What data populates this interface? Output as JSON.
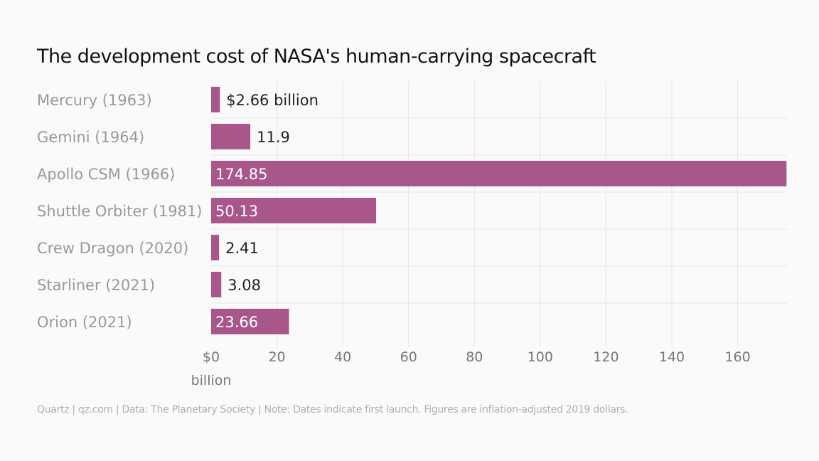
{
  "chart_data": {
    "type": "bar",
    "orientation": "horizontal",
    "title": "The development cost of NASA's human-carrying spacecraft",
    "categories": [
      "Mercury (1963)",
      "Gemini (1964)",
      "Apollo CSM (1966)",
      "Shuttle Orbiter (1981)",
      "Crew Dragon (2020)",
      "Starliner (2021)",
      "Orion (2021)"
    ],
    "values": [
      2.66,
      11.9,
      174.85,
      50.13,
      2.41,
      3.08,
      23.66
    ],
    "data_labels": [
      "$2.66 billion",
      "11.9",
      "174.85",
      "50.13",
      "2.41",
      "3.08",
      "23.66"
    ],
    "xlim": [
      0,
      175
    ],
    "xticks": [
      0,
      20,
      40,
      60,
      80,
      100,
      120,
      140,
      160
    ],
    "xtick_labels": [
      [
        "$0",
        "billion"
      ],
      [
        "20"
      ],
      [
        "40"
      ],
      [
        "60"
      ],
      [
        "80"
      ],
      [
        "100"
      ],
      [
        "120"
      ],
      [
        "140"
      ],
      [
        "160"
      ]
    ],
    "grid": true,
    "bar_color": "#a9578b",
    "footer": "Quartz | qz.com | Data: The Planetary Society | Note: Dates indicate first launch. Figures are inflation-adjusted 2019 dollars."
  }
}
